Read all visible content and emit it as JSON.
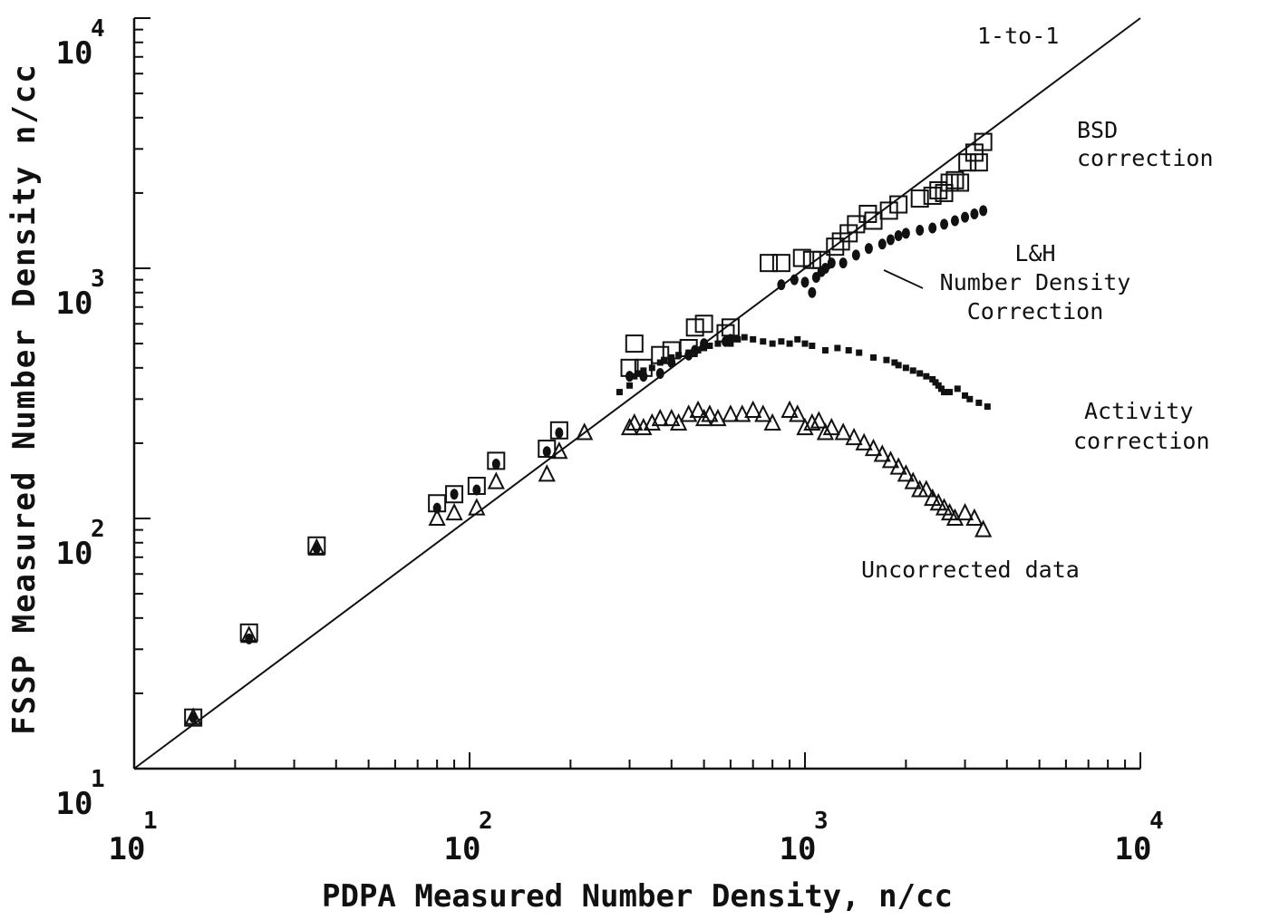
{
  "chart_data": {
    "type": "scatter",
    "xlabel": "PDPA Measured Number Density, n/cc",
    "ylabel": "FSSP Measured Number Density n/cc",
    "x_scale": "log",
    "y_scale": "log",
    "xlim": [
      10,
      10000
    ],
    "ylim": [
      10,
      10000
    ],
    "x_ticks": [
      {
        "base": "10",
        "exp": "1",
        "value": 10
      },
      {
        "base": "10",
        "exp": "2",
        "value": 100
      },
      {
        "base": "10",
        "exp": "3",
        "value": 1000
      },
      {
        "base": "10",
        "exp": "4",
        "value": 10000
      }
    ],
    "y_ticks": [
      {
        "base": "10",
        "exp": "1",
        "value": 10
      },
      {
        "base": "10",
        "exp": "2",
        "value": 100
      },
      {
        "base": "10",
        "exp": "3",
        "value": 1000
      },
      {
        "base": "10",
        "exp": "4",
        "value": 10000
      }
    ],
    "grid": false,
    "annotations": [
      {
        "id": "one-to-one",
        "lines": [
          "1-to-1"
        ]
      },
      {
        "id": "bsd",
        "lines": [
          "BSD",
          "correction"
        ]
      },
      {
        "id": "lh",
        "lines": [
          "L&H",
          "Number Density",
          "Correction"
        ]
      },
      {
        "id": "activity",
        "lines": [
          "Activity",
          "correction"
        ]
      },
      {
        "id": "uncorrected",
        "lines": [
          "Uncorrected data"
        ]
      }
    ],
    "reference_line": {
      "name": "1-to-1",
      "x": [
        10,
        10000
      ],
      "y": [
        10,
        10000
      ]
    },
    "series": [
      {
        "marker": "square",
        "x": [
          15,
          22,
          35,
          80,
          90,
          105,
          120,
          170,
          185,
          300,
          310,
          330,
          370,
          400,
          450,
          470,
          500,
          580,
          600,
          780,
          850,
          980,
          1050,
          1120,
          1230,
          1280,
          1350,
          1420,
          1540,
          1600,
          1780,
          1900,
          2200,
          2400,
          2500,
          2600,
          2700,
          2800,
          2900,
          3050,
          3200,
          3300,
          3400
        ],
        "y": [
          16,
          35,
          78,
          115,
          125,
          135,
          170,
          190,
          225,
          400,
          500,
          400,
          450,
          470,
          480,
          580,
          600,
          550,
          580,
          1050,
          1050,
          1100,
          1080,
          1080,
          1220,
          1280,
          1380,
          1500,
          1650,
          1550,
          1700,
          1800,
          1900,
          1950,
          2050,
          2000,
          2200,
          2250,
          2200,
          2650,
          2900,
          2650,
          3200
        ]
      },
      {
        "marker": "filled-circle",
        "x": [
          15,
          22,
          35,
          80,
          90,
          105,
          120,
          170,
          185,
          300,
          330,
          370,
          400,
          450,
          470,
          500,
          580,
          600,
          850,
          930,
          1000,
          1050,
          1080,
          1120,
          1150,
          1200,
          1300,
          1420,
          1550,
          1700,
          1800,
          1900,
          2000,
          2200,
          2400,
          2600,
          2800,
          3000,
          3200,
          3400
        ],
        "y": [
          16,
          33,
          76,
          110,
          125,
          130,
          165,
          185,
          220,
          370,
          370,
          380,
          420,
          450,
          470,
          500,
          510,
          520,
          860,
          900,
          880,
          800,
          920,
          970,
          1000,
          1050,
          1050,
          1130,
          1200,
          1250,
          1300,
          1350,
          1380,
          1420,
          1450,
          1500,
          1550,
          1600,
          1650,
          1700
        ]
      },
      {
        "marker": "small-square",
        "x": [
          280,
          300,
          310,
          320,
          330,
          350,
          370,
          380,
          400,
          420,
          450,
          480,
          500,
          520,
          550,
          580,
          600,
          630,
          660,
          700,
          750,
          800,
          850,
          900,
          950,
          1000,
          1050,
          1150,
          1250,
          1350,
          1450,
          1600,
          1750,
          1850,
          1900,
          2000,
          2100,
          2200,
          2300,
          2400,
          2450,
          2500,
          2550,
          2600,
          2700,
          2850,
          3000,
          3100,
          3300,
          3500
        ],
        "y": [
          320,
          340,
          370,
          380,
          390,
          400,
          420,
          430,
          440,
          450,
          460,
          470,
          480,
          490,
          500,
          510,
          500,
          520,
          530,
          520,
          510,
          500,
          510,
          500,
          520,
          500,
          490,
          470,
          480,
          470,
          460,
          440,
          430,
          420,
          410,
          400,
          390,
          380,
          370,
          360,
          350,
          340,
          330,
          320,
          320,
          330,
          310,
          300,
          290,
          280
        ]
      },
      {
        "marker": "triangle",
        "x": [
          15,
          22,
          35,
          80,
          90,
          105,
          120,
          170,
          185,
          220,
          300,
          310,
          330,
          350,
          370,
          400,
          420,
          450,
          480,
          500,
          520,
          550,
          600,
          650,
          700,
          750,
          800,
          900,
          950,
          1000,
          1050,
          1100,
          1150,
          1200,
          1300,
          1400,
          1500,
          1600,
          1700,
          1800,
          1900,
          2000,
          2100,
          2200,
          2300,
          2400,
          2500,
          2600,
          2700,
          2800,
          3000,
          3200,
          3400
        ],
        "y": [
          16,
          34,
          76,
          100,
          105,
          110,
          140,
          150,
          185,
          220,
          230,
          240,
          230,
          240,
          250,
          250,
          240,
          260,
          270,
          250,
          260,
          250,
          260,
          260,
          270,
          260,
          240,
          270,
          260,
          230,
          240,
          245,
          220,
          230,
          220,
          210,
          200,
          190,
          180,
          170,
          160,
          150,
          140,
          130,
          130,
          120,
          115,
          110,
          105,
          100,
          105,
          100,
          90
        ]
      }
    ]
  }
}
